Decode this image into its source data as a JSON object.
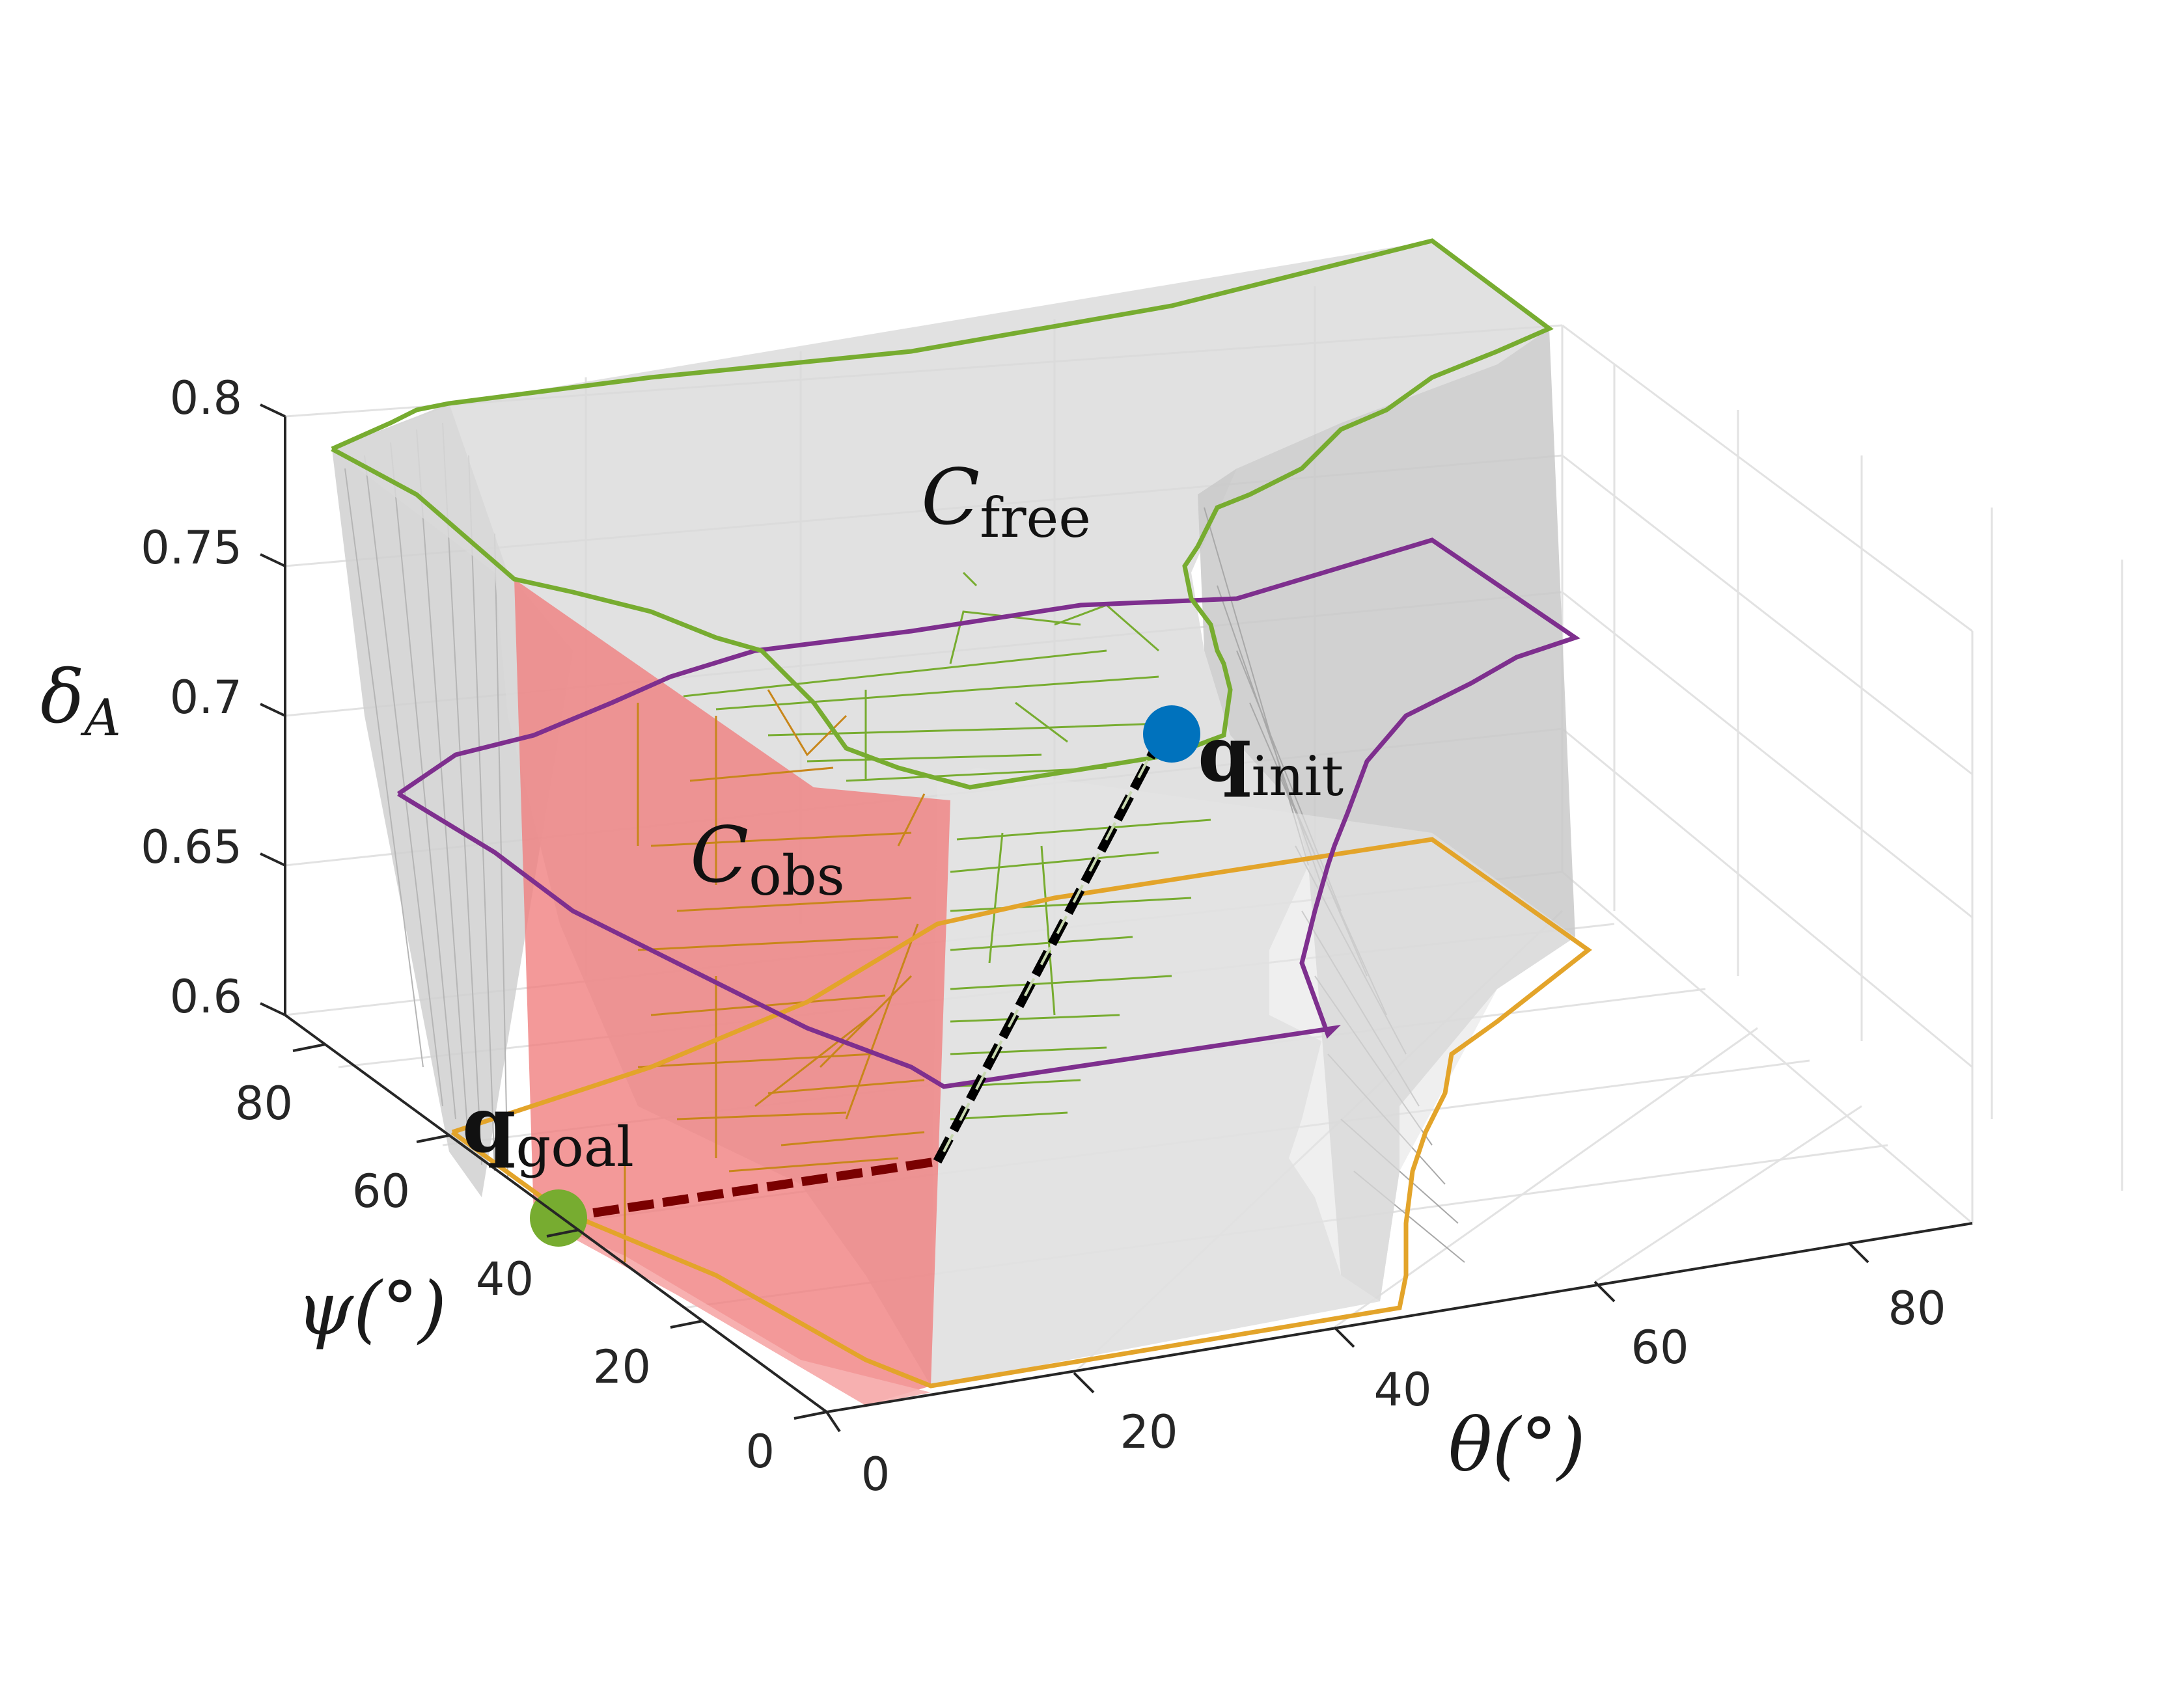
{
  "chart_data": {
    "type": "surface3d",
    "axes": {
      "x": {
        "label": "θ",
        "unit": "(°)",
        "ticks": [
          "0",
          "20",
          "40",
          "60",
          "80"
        ],
        "range": [
          0,
          90
        ]
      },
      "y": {
        "label": "ψ",
        "unit": "(°)",
        "ticks": [
          "0",
          "20",
          "40",
          "60",
          "80"
        ],
        "range": [
          0,
          90
        ]
      },
      "z": {
        "label": "δ",
        "subscript": "A",
        "ticks": [
          "0.6",
          "0.65",
          "0.7",
          "0.75",
          "0.8"
        ],
        "range": [
          0.6,
          0.8
        ]
      }
    },
    "grid": true,
    "regions": [
      {
        "name": "C",
        "subscript": "free",
        "color": "#d9d9d9"
      },
      {
        "name": "C",
        "subscript": "obs",
        "color": "#f08080"
      }
    ],
    "slices": [
      {
        "level": 0.6,
        "color": "#e3a42a"
      },
      {
        "level": 0.7,
        "color": "#7e2f8e"
      },
      {
        "level": 0.8,
        "color": "#77ac30"
      }
    ],
    "tree_colors": {
      "upper": "#77ac30",
      "lower": "#c8861a"
    },
    "points": [
      {
        "name": "q",
        "subscript": "init",
        "color": "#0072bd",
        "theta": 40,
        "psi": 72,
        "delta": 0.8
      },
      {
        "name": "q",
        "subscript": "goal",
        "color": "#77ac30",
        "theta": 0,
        "psi": 50,
        "delta": 0.6
      }
    ],
    "path": {
      "style": "dashed",
      "colors": [
        "#000000",
        "#7a0000"
      ],
      "via": {
        "theta": 10,
        "psi": 68,
        "delta": 0.6
      }
    }
  }
}
